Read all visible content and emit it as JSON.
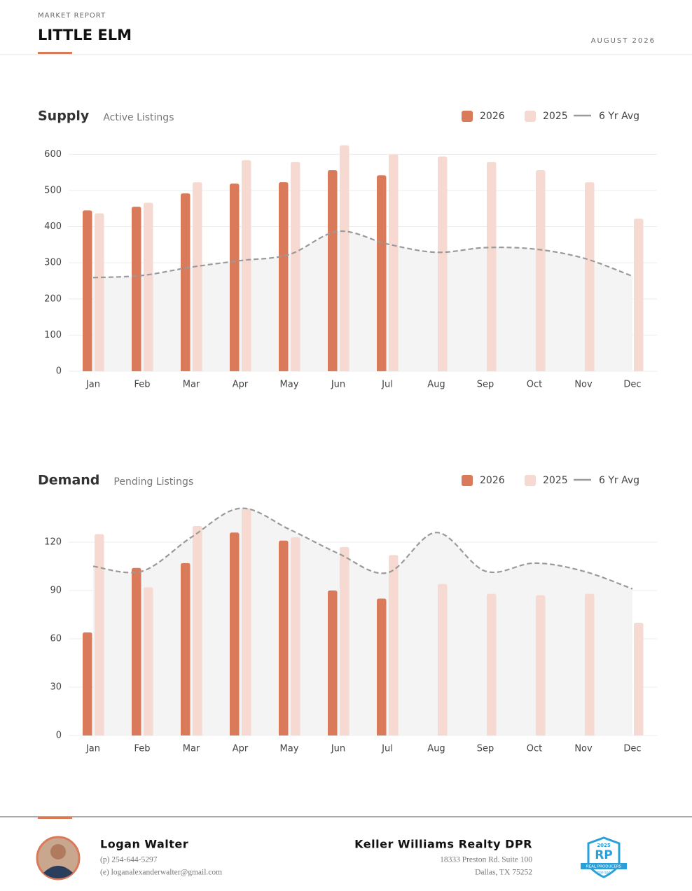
{
  "header": {
    "kicker": "MARKET REPORT",
    "title": "LITTLE ELM",
    "date": "AUGUST 2026"
  },
  "chart_data": [
    {
      "type": "bar",
      "title": "Supply",
      "subtitle": "Active Listings",
      "categories": [
        "Jan",
        "Feb",
        "Mar",
        "Apr",
        "May",
        "Jun",
        "Jul",
        "Aug",
        "Sep",
        "Oct",
        "Nov",
        "Dec"
      ],
      "series": [
        {
          "name": "2026",
          "color": "#d97a5a",
          "values": [
            445,
            455,
            492,
            519,
            523,
            556,
            542,
            null,
            null,
            null,
            null,
            null
          ]
        },
        {
          "name": "2025",
          "color": "#f6d9d0",
          "values": [
            437,
            466,
            523,
            584,
            579,
            625,
            600,
            594,
            579,
            556,
            523,
            422
          ]
        },
        {
          "name": "6 Yr Avg",
          "type": "line",
          "color": "#9a9a9a",
          "values": [
            259,
            265,
            288,
            306,
            323,
            387,
            352,
            329,
            342,
            338,
            313,
            263
          ]
        }
      ],
      "ylim": [
        0,
        620
      ],
      "yticks": [
        0,
        100,
        200,
        300,
        400,
        500,
        600
      ],
      "grid": true
    },
    {
      "type": "bar",
      "title": "Demand",
      "subtitle": "Pending Listings",
      "categories": [
        "Jan",
        "Feb",
        "Mar",
        "Apr",
        "May",
        "Jun",
        "Jul",
        "Aug",
        "Sep",
        "Oct",
        "Nov",
        "Dec"
      ],
      "series": [
        {
          "name": "2026",
          "color": "#d97a5a",
          "values": [
            64,
            104,
            107,
            126,
            121,
            90,
            85,
            null,
            null,
            null,
            null,
            null
          ]
        },
        {
          "name": "2025",
          "color": "#f6d9d0",
          "values": [
            125,
            92,
            130,
            141,
            123,
            117,
            112,
            94,
            88,
            87,
            88,
            70
          ]
        },
        {
          "name": "6 Yr Avg",
          "type": "line",
          "color": "#9a9a9a",
          "values": [
            105,
            102,
            123,
            141,
            128,
            113,
            101,
            126,
            102,
            107,
            102,
            91
          ]
        }
      ],
      "ylim": [
        0,
        145
      ],
      "yticks": [
        0,
        30,
        60,
        90,
        120
      ],
      "grid": true
    }
  ],
  "footer": {
    "agent": {
      "name": "Logan Walter",
      "phone": "(p) 254-644-5297",
      "email": "(e) loganalexanderwalter@gmail.com"
    },
    "company": {
      "name": "Keller Williams Realty DPR",
      "address1": "18333 Preston Rd. Suite 100",
      "address2": "Dallas, TX 75252"
    },
    "badge": {
      "year": "2025",
      "logo": "RP",
      "ribbon": "REAL PRODUCERS",
      "rank": "TOP 500"
    }
  }
}
